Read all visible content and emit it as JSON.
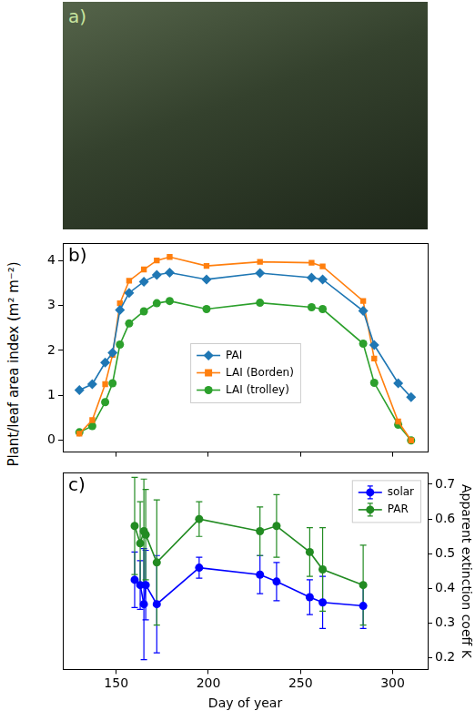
{
  "image_panel": {
    "label": "a)"
  },
  "chart_data": [
    {
      "type": "line",
      "annotations": [
        "b)"
      ],
      "y_label": "Plant/leaf area index (m² m⁻²)",
      "x": [
        130,
        137,
        144,
        148,
        152,
        157,
        165,
        172,
        179,
        199,
        228,
        256,
        262,
        284,
        290,
        303,
        310
      ],
      "series": [
        {
          "name": "PAI",
          "color": "#1f77b4",
          "marker": "diamond",
          "values": [
            1.12,
            1.25,
            1.73,
            1.95,
            2.9,
            3.28,
            3.53,
            3.68,
            3.73,
            3.58,
            3.72,
            3.62,
            3.58,
            2.88,
            2.12,
            1.27,
            0.96
          ]
        },
        {
          "name": "LAI (Borden)",
          "color": "#ff7f0e",
          "marker": "square",
          "values": [
            0.15,
            0.45,
            1.25,
            1.9,
            3.05,
            3.55,
            3.8,
            4.0,
            4.08,
            3.88,
            3.97,
            3.95,
            3.87,
            3.1,
            1.82,
            0.42,
            0.0
          ]
        },
        {
          "name": "LAI (trolley)",
          "color": "#2ca02c",
          "marker": "circle",
          "values": [
            0.18,
            0.32,
            0.85,
            1.27,
            2.13,
            2.6,
            2.87,
            3.05,
            3.1,
            2.92,
            3.06,
            2.96,
            2.92,
            2.15,
            1.28,
            0.35,
            0.0
          ]
        }
      ],
      "xlim": [
        121,
        319
      ],
      "xticks": [
        150,
        200,
        250,
        300
      ],
      "ylim": [
        -0.26,
        4.38
      ],
      "yticks": [
        0,
        1,
        2,
        3,
        4
      ],
      "legend": "center",
      "tick_labels": "y",
      "grid": false
    },
    {
      "type": "line",
      "annotations": [
        "c)"
      ],
      "x_label": "Day of year",
      "y2_label": "Apparent extinction coeff K",
      "x": [
        160,
        163,
        165,
        166,
        172,
        195,
        228,
        237,
        255,
        262,
        284
      ],
      "series": [
        {
          "name": "solar",
          "color": "#0000ff",
          "marker": "circle",
          "axis": "y2",
          "values": [
            0.425,
            0.41,
            0.355,
            0.41,
            0.355,
            0.46,
            0.44,
            0.42,
            0.375,
            0.36,
            0.35
          ],
          "errors": [
            0.08,
            0.07,
            0.16,
            0.1,
            0.14,
            0.03,
            0.055,
            0.055,
            0.05,
            0.075,
            0.065
          ]
        },
        {
          "name": "PAR",
          "color": "#228b22",
          "marker": "circle",
          "axis": "y2",
          "values": [
            0.58,
            0.53,
            0.565,
            0.555,
            0.475,
            0.6,
            0.565,
            0.58,
            0.505,
            0.455,
            0.41
          ],
          "errors": [
            0.14,
            0.12,
            0.15,
            0.13,
            0.18,
            0.05,
            0.07,
            0.09,
            0.07,
            0.12,
            0.115
          ]
        }
      ],
      "xlim": [
        121,
        319
      ],
      "xticks": [
        150,
        200,
        250,
        300
      ],
      "y2lim": [
        0.167,
        0.733
      ],
      "y2ticks": [
        0.2,
        0.3,
        0.4,
        0.5,
        0.6,
        0.7
      ],
      "legend": "upper right",
      "grid": false
    }
  ]
}
